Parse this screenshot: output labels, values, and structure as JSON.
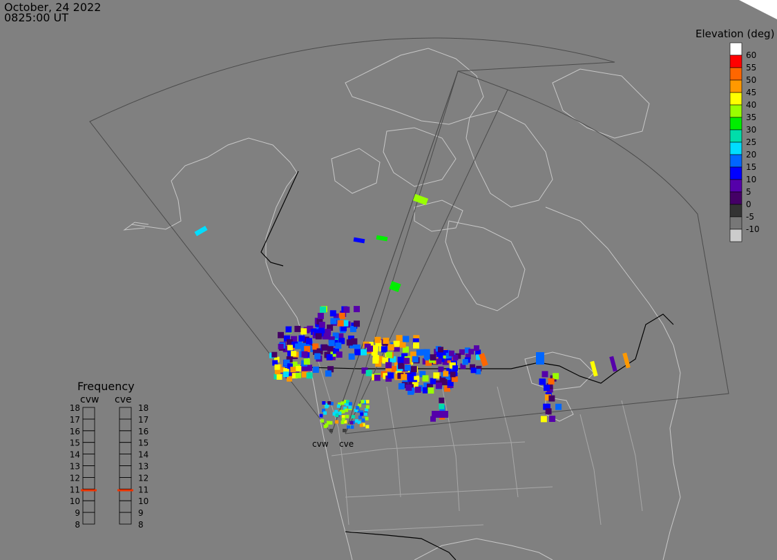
{
  "header": {
    "date": "October, 24 2022",
    "time": "0825:00 UT"
  },
  "legend": {
    "title": "Elevation (deg)",
    "levels": [
      {
        "label": "60",
        "color": "#ffffff"
      },
      {
        "label": "55",
        "color": "#ff0000"
      },
      {
        "label": "50",
        "color": "#ff6600"
      },
      {
        "label": "45",
        "color": "#ff9900"
      },
      {
        "label": "40",
        "color": "#ffff00"
      },
      {
        "label": "35",
        "color": "#99ff00"
      },
      {
        "label": "30",
        "color": "#00ee00"
      },
      {
        "label": "25",
        "color": "#00ddaa"
      },
      {
        "label": "20",
        "color": "#00ddff"
      },
      {
        "label": "15",
        "color": "#0066ff"
      },
      {
        "label": "10",
        "color": "#0000ff"
      },
      {
        "label": "5",
        "color": "#5500aa"
      },
      {
        "label": "0",
        "color": "#440066"
      },
      {
        "label": "-5",
        "color": "#333333"
      },
      {
        "label": "-10",
        "color": "#777777"
      },
      {
        "label": "",
        "color": "#cccccc"
      }
    ]
  },
  "frequency": {
    "title": "Frequency",
    "ticks": [
      "18",
      "17",
      "16",
      "15",
      "14",
      "13",
      "12",
      "11",
      "10",
      "9",
      "8"
    ],
    "radars": [
      {
        "name": "cvw",
        "value": 10.9
      },
      {
        "name": "cve",
        "value": 10.9
      }
    ],
    "indicator_color": "#ee3300"
  },
  "radar_sites": [
    "cvw",
    "cve"
  ],
  "colors": {
    "background": "#808080",
    "land_outline": "#c8c8c8",
    "borders": "#000000",
    "fov": "#4a4a4a"
  }
}
